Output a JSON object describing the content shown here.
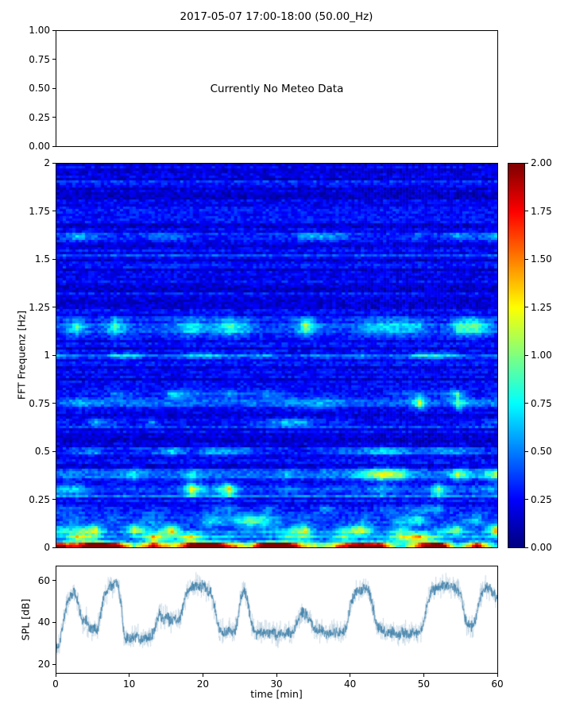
{
  "figure": {
    "background": "#ffffff"
  },
  "chart_data": [
    {
      "type": "empty",
      "title": "2017-05-07 17:00-18:00 (50.00_Hz)",
      "annotation": "Currently No Meteo Data",
      "ylim": [
        0.0,
        1.0
      ],
      "yticks": [
        "1.00",
        "0.75",
        "0.50",
        "0.25",
        "0.00"
      ],
      "grid": false
    },
    {
      "type": "heatmap",
      "ylabel": "FFT Frequenz [Hz]",
      "ylim": [
        0,
        2
      ],
      "yticks": [
        "2",
        "1.75",
        "1.5",
        "1.25",
        "1",
        "0.75",
        "0.5",
        "0.25",
        "0"
      ],
      "xlim_minutes": [
        0,
        60
      ],
      "colormap": "jet",
      "vmin": 0.0,
      "vmax": 2.0,
      "seed": 42,
      "background_level": 0.22,
      "description": "Horizontally streaked spectrogram, mostly deep blue with bright yellow/red bands near 0 Hz, 0.05-0.15 Hz, 0.3-0.4 Hz, 0.75 Hz, 1.1-1.2 Hz and sporadic streaks near 1.6 Hz; solid dark-red band along the very bottom.",
      "bands": [
        {
          "f": 0.01,
          "w": 0.016,
          "amp": 1.9,
          "patch": 0.1
        },
        {
          "f": 0.05,
          "w": 0.025,
          "amp": 1.0,
          "patch": 0.5
        },
        {
          "f": 0.09,
          "w": 0.025,
          "amp": 0.7,
          "patch": 0.6
        },
        {
          "f": 0.14,
          "w": 0.03,
          "amp": 0.45,
          "patch": 0.7
        },
        {
          "f": 0.2,
          "w": 0.02,
          "amp": 0.3,
          "patch": 0.7
        },
        {
          "f": 0.3,
          "w": 0.035,
          "amp": 0.65,
          "patch": 0.75
        },
        {
          "f": 0.38,
          "w": 0.03,
          "amp": 0.8,
          "patch": 0.8
        },
        {
          "f": 0.5,
          "w": 0.02,
          "amp": 0.35,
          "patch": 0.6
        },
        {
          "f": 0.65,
          "w": 0.02,
          "amp": 0.35,
          "patch": 0.7
        },
        {
          "f": 0.75,
          "w": 0.035,
          "amp": 0.6,
          "patch": 0.8
        },
        {
          "f": 0.8,
          "w": 0.02,
          "amp": 0.4,
          "patch": 0.7
        },
        {
          "f": 1.0,
          "w": 0.015,
          "amp": 0.3,
          "patch": 0.6
        },
        {
          "f": 1.15,
          "w": 0.045,
          "amp": 0.6,
          "patch": 0.85
        },
        {
          "f": 1.62,
          "w": 0.02,
          "amp": 0.4,
          "patch": 0.85
        }
      ],
      "colorbar": {
        "ticks": [
          "2.00",
          "1.75",
          "1.50",
          "1.25",
          "1.00",
          "0.75",
          "0.50",
          "0.25",
          "0.00"
        ],
        "vmin": 0.0,
        "vmax": 2.0
      }
    },
    {
      "type": "line",
      "ylabel": "SPL [dB]",
      "xlabel": "time [min]",
      "xlim": [
        0,
        60
      ],
      "ylim": [
        16,
        67
      ],
      "yticks": [
        "60",
        "40",
        "20"
      ],
      "ytick_values": [
        60,
        40,
        20
      ],
      "xticks": [
        "0",
        "10",
        "20",
        "30",
        "40",
        "50",
        "60"
      ],
      "xtick_values": [
        0,
        10,
        20,
        30,
        40,
        50,
        60
      ],
      "line_color": "#3e7fa8",
      "halo_color": "rgba(100,150,185,0.35)",
      "noise_db_core": 2.3,
      "noise_db_halo": 5.0,
      "seed": 7,
      "keypoints": [
        [
          0,
          27
        ],
        [
          0.4,
          30
        ],
        [
          0.8,
          38
        ],
        [
          1.2,
          45
        ],
        [
          1.6,
          50
        ],
        [
          2,
          53
        ],
        [
          2.4,
          55
        ],
        [
          2.8,
          52
        ],
        [
          3.2,
          45
        ],
        [
          3.6,
          40
        ],
        [
          4,
          42
        ],
        [
          4.4,
          38
        ],
        [
          4.8,
          36
        ],
        [
          5.2,
          38
        ],
        [
          5.6,
          36
        ],
        [
          6,
          44
        ],
        [
          6.4,
          52
        ],
        [
          6.8,
          55
        ],
        [
          7.2,
          57
        ],
        [
          7.6,
          58
        ],
        [
          8,
          59
        ],
        [
          8.4,
          58
        ],
        [
          8.8,
          50
        ],
        [
          9.2,
          34
        ],
        [
          9.6,
          32
        ],
        [
          10,
          33
        ],
        [
          10.5,
          32
        ],
        [
          11,
          34
        ],
        [
          11.5,
          32
        ],
        [
          12,
          33
        ],
        [
          12.5,
          32
        ],
        [
          13,
          34
        ],
        [
          13.5,
          38
        ],
        [
          14,
          45
        ],
        [
          14.5,
          41
        ],
        [
          15,
          44
        ],
        [
          15.5,
          40
        ],
        [
          16,
          43
        ],
        [
          16.5,
          41
        ],
        [
          17,
          44
        ],
        [
          17.5,
          52
        ],
        [
          18,
          56
        ],
        [
          18.5,
          57
        ],
        [
          19,
          58
        ],
        [
          19.5,
          57
        ],
        [
          20,
          58
        ],
        [
          20.5,
          56
        ],
        [
          21,
          55
        ],
        [
          21.5,
          48
        ],
        [
          22,
          38
        ],
        [
          22.5,
          36
        ],
        [
          23,
          35
        ],
        [
          23.5,
          37
        ],
        [
          24,
          35
        ],
        [
          24.5,
          38
        ],
        [
          25,
          50
        ],
        [
          25.3,
          54
        ],
        [
          25.6,
          55
        ],
        [
          26,
          52
        ],
        [
          26.4,
          42
        ],
        [
          26.8,
          37
        ],
        [
          27.2,
          35
        ],
        [
          27.6,
          36
        ],
        [
          28,
          35
        ],
        [
          28.5,
          36
        ],
        [
          29,
          35
        ],
        [
          29.5,
          36
        ],
        [
          30,
          34
        ],
        [
          30.5,
          35
        ],
        [
          31,
          34
        ],
        [
          31.5,
          36
        ],
        [
          32,
          35
        ],
        [
          32.5,
          38
        ],
        [
          33,
          43
        ],
        [
          33.5,
          45
        ],
        [
          34,
          44
        ],
        [
          34.5,
          41
        ],
        [
          35,
          38
        ],
        [
          35.5,
          36
        ],
        [
          36,
          37
        ],
        [
          36.5,
          36
        ],
        [
          37,
          35
        ],
        [
          37.5,
          36
        ],
        [
          38,
          35
        ],
        [
          38.5,
          36
        ],
        [
          39,
          35
        ],
        [
          39.5,
          38
        ],
        [
          40,
          48
        ],
        [
          40.5,
          53
        ],
        [
          41,
          56
        ],
        [
          41.5,
          55
        ],
        [
          42,
          57
        ],
        [
          42.5,
          56
        ],
        [
          43,
          48
        ],
        [
          43.5,
          40
        ],
        [
          44,
          37
        ],
        [
          44.5,
          36
        ],
        [
          45,
          35
        ],
        [
          45.5,
          36
        ],
        [
          46,
          35
        ],
        [
          46.5,
          34
        ],
        [
          47,
          36
        ],
        [
          47.5,
          35
        ],
        [
          48,
          34
        ],
        [
          48.5,
          36
        ],
        [
          49,
          35
        ],
        [
          49.5,
          36
        ],
        [
          50,
          40
        ],
        [
          50.5,
          50
        ],
        [
          51,
          55
        ],
        [
          51.5,
          56
        ],
        [
          52,
          57
        ],
        [
          52.5,
          58
        ],
        [
          53,
          58
        ],
        [
          53.5,
          57
        ],
        [
          54,
          57
        ],
        [
          54.5,
          56
        ],
        [
          55,
          54
        ],
        [
          55.3,
          48
        ],
        [
          55.6,
          42
        ],
        [
          56,
          39
        ],
        [
          56.5,
          38
        ],
        [
          57,
          41
        ],
        [
          57.3,
          46
        ],
        [
          57.6,
          51
        ],
        [
          58,
          55
        ],
        [
          58.5,
          57
        ],
        [
          59,
          57
        ],
        [
          59.5,
          54
        ],
        [
          60,
          50
        ]
      ]
    }
  ]
}
